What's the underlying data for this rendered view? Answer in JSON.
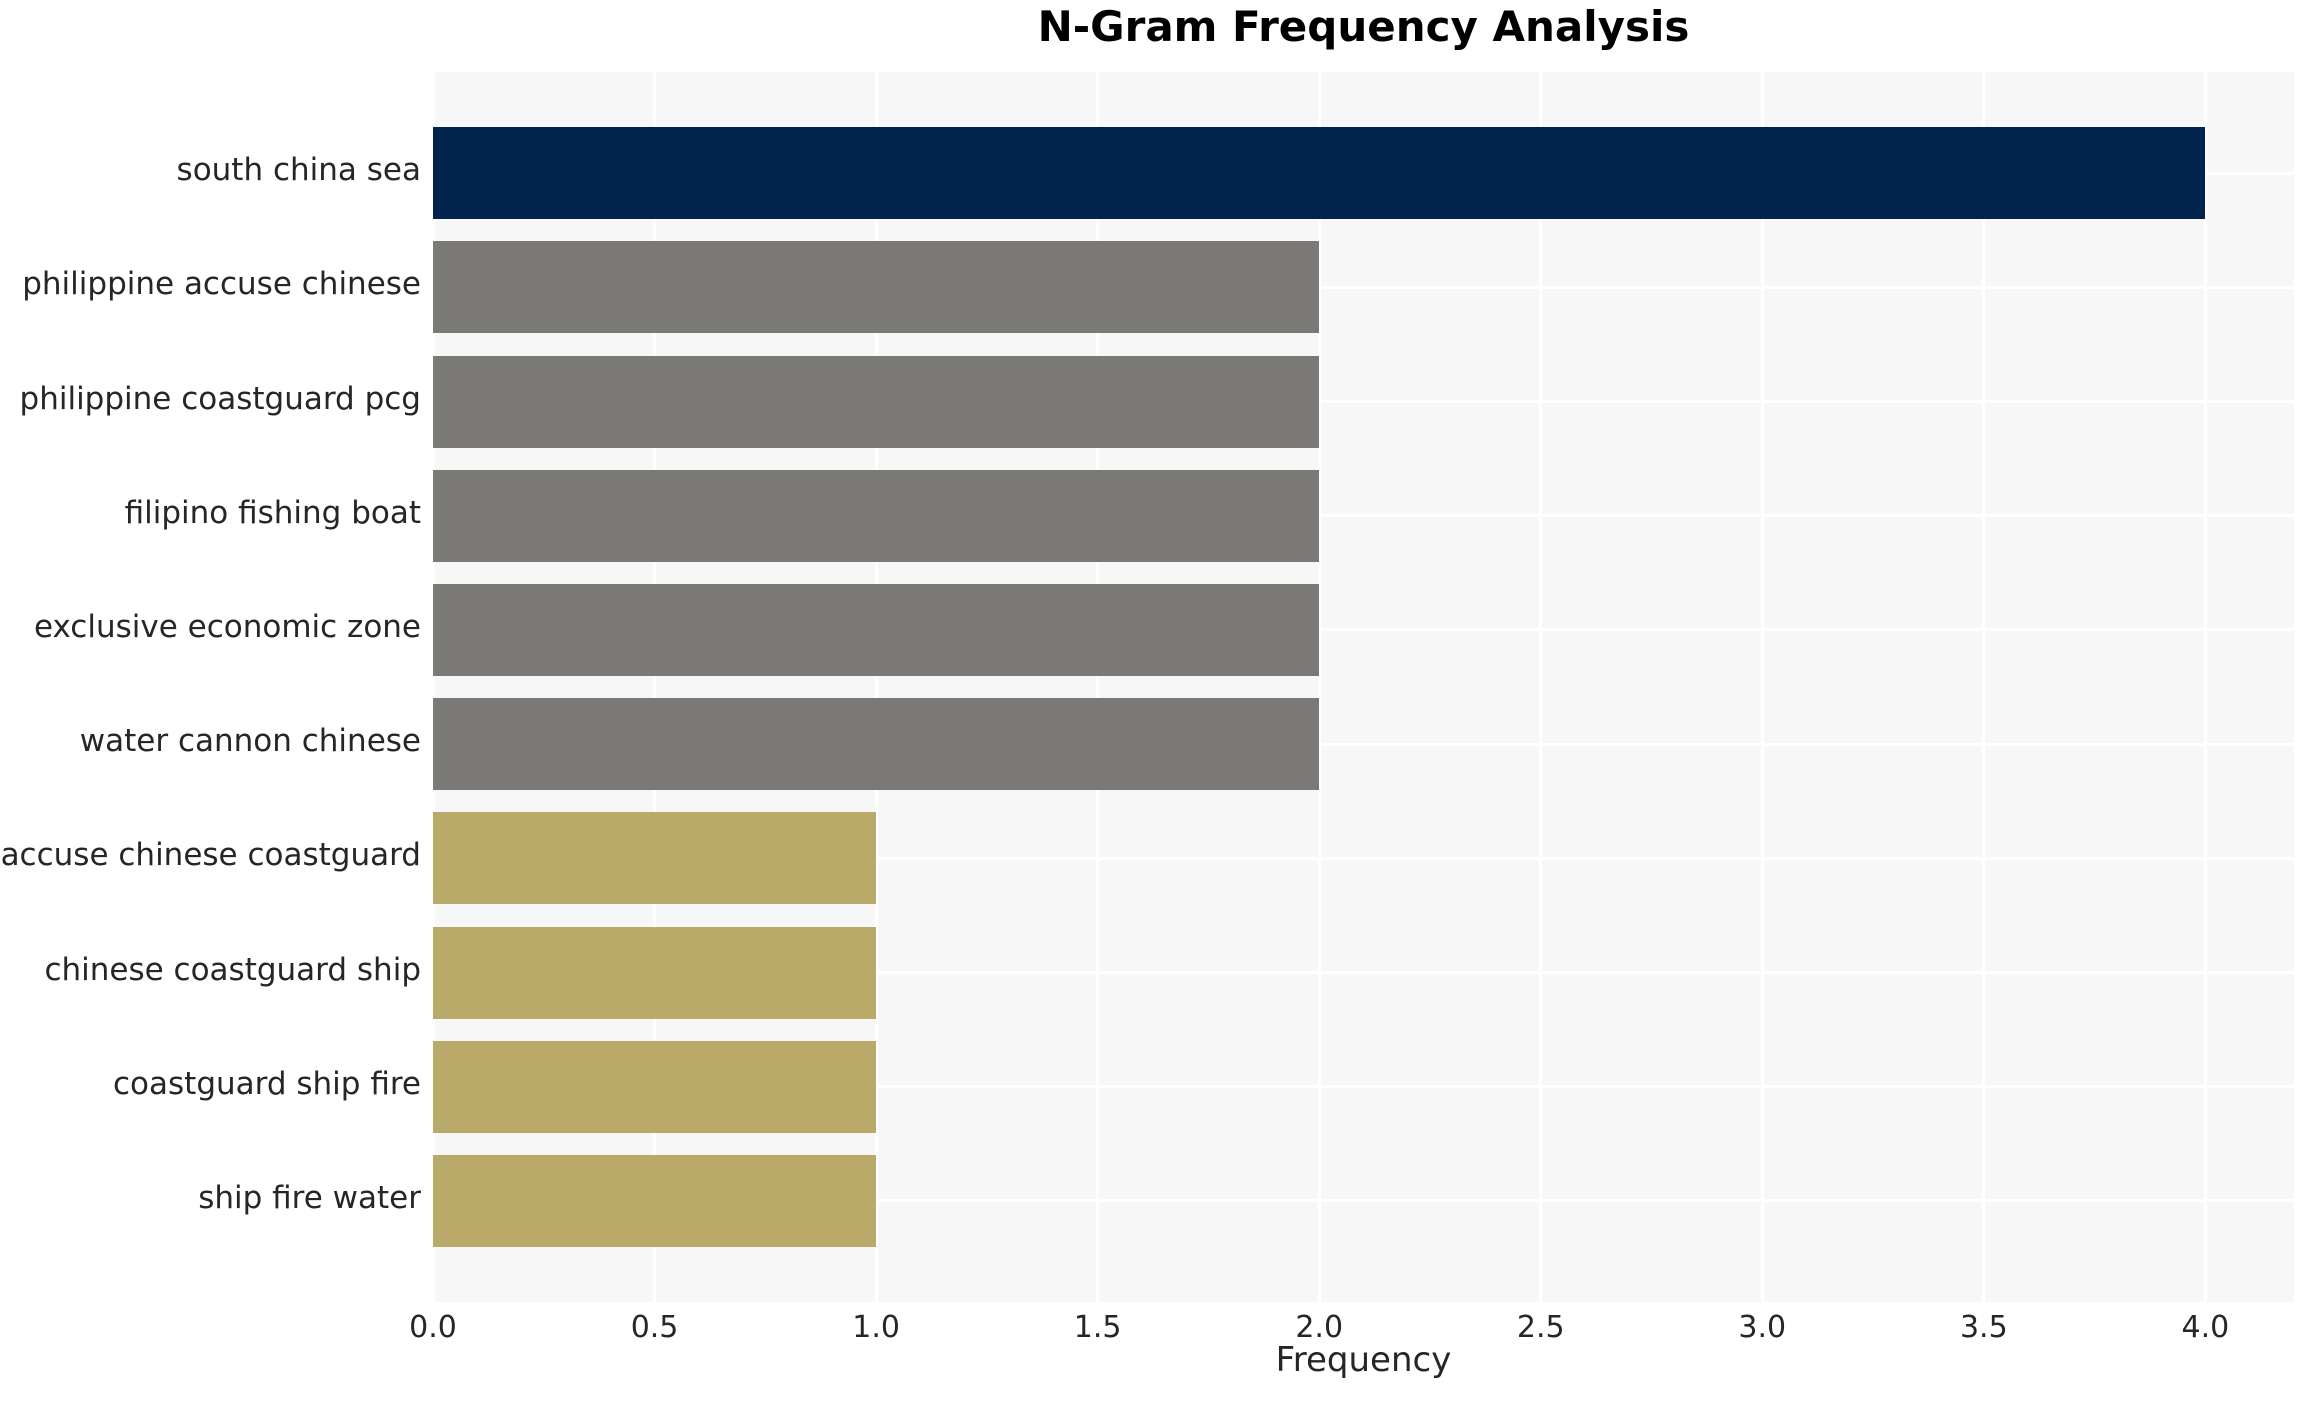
{
  "chart_data": {
    "type": "bar",
    "orientation": "horizontal",
    "title": "N-Gram Frequency Analysis",
    "xlabel": "Frequency",
    "ylabel": "",
    "categories": [
      "south china sea",
      "philippine accuse chinese",
      "philippine coastguard pcg",
      "filipino fishing boat",
      "exclusive economic zone",
      "water cannon chinese",
      "accuse chinese coastguard",
      "chinese coastguard ship",
      "coastguard ship fire",
      "ship fire water"
    ],
    "values": [
      4,
      2,
      2,
      2,
      2,
      2,
      1,
      1,
      1,
      1
    ],
    "bar_colors": [
      "#02234e",
      "#7a7975",
      "#7a7975",
      "#7a7975",
      "#7a7975",
      "#7a7975",
      "#b9aa69",
      "#b9aa69",
      "#b9aa69",
      "#b9aa69"
    ],
    "xlim": [
      0,
      4.2
    ],
    "xticks": [
      0.0,
      0.5,
      1.0,
      1.5,
      2.0,
      2.5,
      3.0,
      3.5,
      4.0
    ],
    "xtick_labels": [
      "0.0",
      "0.5",
      "1.0",
      "1.5",
      "2.0",
      "2.5",
      "3.0",
      "3.5",
      "4.0"
    ],
    "grid": true,
    "legend": false,
    "plot_bg": "#f7f7f7",
    "grid_color": "#ffffff",
    "text_color": "#262626",
    "title_color": "#000000"
  }
}
